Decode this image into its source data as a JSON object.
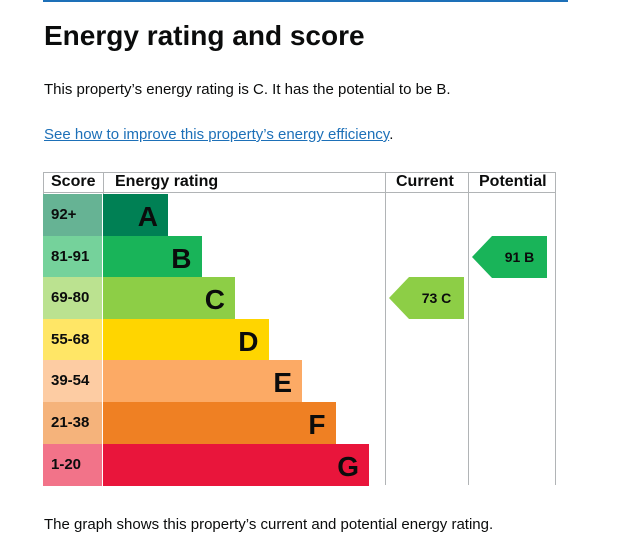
{
  "page": {
    "title": "Energy rating and score",
    "intro": "This property’s energy rating is C. It has the potential to be B.",
    "link_text": "See how to improve this property’s energy efficiency",
    "link_suffix": ".",
    "caption": "The graph shows this property’s current and potential energy rating."
  },
  "chart": {
    "headers": {
      "score": "Score",
      "energy": "Energy rating",
      "current": "Current",
      "potential": "Potential"
    },
    "bands": [
      {
        "score": "92+",
        "letter": "A",
        "color": "#008054",
        "tint": "#66b394"
      },
      {
        "score": "81-91",
        "letter": "B",
        "color": "#19b459",
        "tint": "#75d29b"
      },
      {
        "score": "69-80",
        "letter": "C",
        "color": "#8dce46",
        "tint": "#bbe290"
      },
      {
        "score": "55-68",
        "letter": "D",
        "color": "#ffd500",
        "tint": "#ffe666"
      },
      {
        "score": "39-54",
        "letter": "E",
        "color": "#fcaa65",
        "tint": "#fdcca3"
      },
      {
        "score": "21-38",
        "letter": "F",
        "color": "#ef8023",
        "tint": "#f5b37b"
      },
      {
        "score": "1-20",
        "letter": "G",
        "color": "#e9153b",
        "tint": "#f27389"
      }
    ],
    "current": {
      "label": "73 C",
      "score": 73,
      "band": "C"
    },
    "potential": {
      "label": "91 B",
      "score": 91,
      "band": "B"
    }
  }
}
